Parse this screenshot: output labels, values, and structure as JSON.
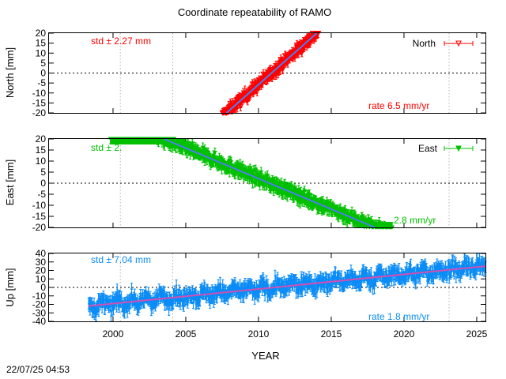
{
  "title": "Coordinate repeatability of RAMO",
  "timestamp": "22/07/25 04:53",
  "chart_data": {
    "type": "scatter",
    "xlabel": "YEAR",
    "xlim": [
      1995.6,
      2025.6
    ],
    "x_ticks": [
      2000,
      2005,
      2010,
      2015,
      2020,
      2025
    ],
    "x_tick_labels": [
      "2000",
      "2005",
      "2010",
      "2015",
      "2020",
      "2025"
    ],
    "panels": [
      {
        "key": "north",
        "series_name": "North",
        "ylabel": "North [mm]",
        "ylim": [
          -20,
          20
        ],
        "y_ticks": [
          -20,
          -15,
          -10,
          -5,
          0,
          5,
          10,
          15,
          20
        ],
        "y_tick_labels": [
          "-20",
          "-15",
          "-10",
          "-5",
          "0",
          "5",
          "10",
          "15",
          "20"
        ],
        "color": "#ff0000",
        "fit_color": "#4f7df2",
        "marker": "open-triangle-down",
        "data_range": [
          2007.5,
          2014.1
        ],
        "fit_line": [
          [
            2007.8,
            -20
          ],
          [
            2014.0,
            20
          ]
        ],
        "std_label": "std ± 2.27 mm",
        "rate_label": "rate  6.5 mm/yr"
      },
      {
        "key": "east",
        "series_name": "East",
        "ylabel": "East [mm]",
        "ylim": [
          -20,
          20
        ],
        "y_ticks": [
          -20,
          -15,
          -10,
          -5,
          0,
          5,
          10,
          15,
          20
        ],
        "y_tick_labels": [
          "-20",
          "-15",
          "-10",
          "-5",
          "0",
          "5",
          "10",
          "15",
          "20"
        ],
        "color": "#00c000",
        "fit_color": "#4f7df2",
        "marker": "filled-triangle-down",
        "data_range": [
          1999.8,
          2019.2
        ],
        "fit_line": [
          [
            2003.5,
            20
          ],
          [
            2018.0,
            -20
          ]
        ],
        "std_label": "std ± 2.",
        "rate_label": "2.8 mm/yr"
      },
      {
        "key": "up",
        "series_name": "",
        "ylabel": "Up [mm]",
        "ylim": [
          -40,
          40
        ],
        "y_ticks": [
          -40,
          -30,
          -20,
          -10,
          0,
          10,
          20,
          30,
          40
        ],
        "y_tick_labels": [
          "-40",
          "-30",
          "-20",
          "-10",
          "0",
          "10",
          "20",
          "30",
          "40"
        ],
        "color": "#0a8cf7",
        "fit_color": "#d04fb3",
        "marker": "none",
        "data_range": [
          1998.3,
          2025.6
        ],
        "fit_line": [
          [
            1998.3,
            -22
          ],
          [
            2025.6,
            25
          ]
        ],
        "std_label": "std ± 7.04 mm",
        "rate_label": "rate  1.8 mm/yr"
      }
    ]
  }
}
